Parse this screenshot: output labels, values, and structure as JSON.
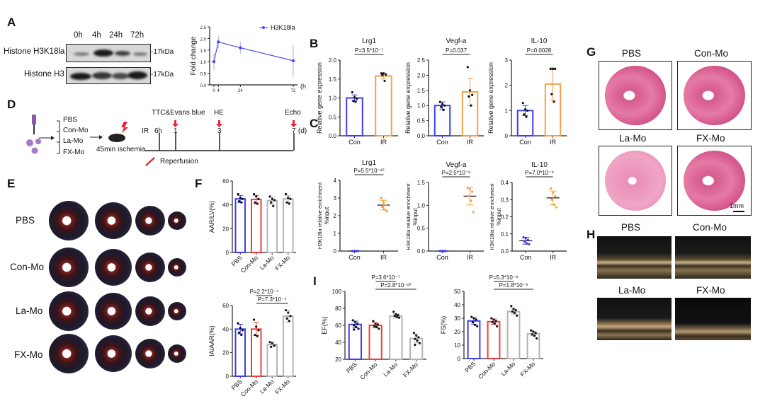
{
  "panel_labels": {
    "A": "A",
    "B": "B",
    "C": "C",
    "D": "D",
    "E": "E",
    "F": "F",
    "G": "G",
    "H": "H",
    "I": "I"
  },
  "panel_a": {
    "lanes": [
      "0h",
      "4h",
      "24h",
      "72h"
    ],
    "rows": [
      "Histone H3K18la",
      "Histone H3"
    ],
    "marker": "-17kDa"
  },
  "panel_d": {
    "groups": [
      "PBS",
      "Con-Mo",
      "La-Mo",
      "FX-Mo"
    ],
    "ischemia": "45min ischemia",
    "ir": "IR",
    "timepoints": [
      "6h",
      "1",
      "3",
      "7"
    ],
    "unit": "(d)",
    "assays": [
      "TTC&Evans blue",
      "HE",
      "Echo"
    ],
    "reperfusion": "Reperfusion"
  },
  "panel_e": {
    "rows": [
      "PBS",
      "Con-Mo",
      "La-Mo",
      "FX-Mo"
    ]
  },
  "panel_g": {
    "titles": [
      "PBS",
      "Con-Mo",
      "La-Mo",
      "FX-Mo"
    ],
    "scale_bar": "1mm"
  },
  "panel_h": {
    "titles": [
      "PBS",
      "Con-Mo",
      "La-Mo",
      "FX-Mo"
    ]
  },
  "colors": {
    "pbs": "#3d3df2",
    "con": "#f5a047",
    "conmo": "#f23c3c",
    "gray": "#b4b4b4",
    "line": "#4a4af5"
  },
  "chart_data": [
    {
      "id": "A",
      "type": "line",
      "ylabel": "Fold  change",
      "xunit": "(h",
      "legend": "H3K18la",
      "legend_position": "top-right",
      "x": [
        0,
        4,
        24,
        72
      ],
      "xticks": [
        "0",
        "4",
        "24",
        "72"
      ],
      "y": [
        1.0,
        1.85,
        1.6,
        1.04
      ],
      "err": [
        0.38,
        0.28,
        0.26,
        0.68
      ],
      "ylim": [
        0,
        2.5
      ],
      "yticks": [
        "0.0",
        "0.5",
        "1.0",
        "1.5",
        "2.0",
        "2.5"
      ]
    },
    {
      "id": "B1",
      "type": "bar",
      "title": "Lrg1",
      "ylabel": "Relative gene expression",
      "categories": [
        "Con",
        "IR"
      ],
      "color_keys": [
        "pbs",
        "con"
      ],
      "values": [
        1.0,
        1.58
      ],
      "err": [
        0.08,
        0.08
      ],
      "points": [
        [
          1.15,
          1.02,
          0.98,
          0.92,
          0.9
        ],
        [
          1.65,
          1.65,
          1.62,
          1.6,
          1.45
        ]
      ],
      "ylim": [
        0,
        2
      ],
      "yticks": [
        "0.0",
        "0.5",
        "1.0",
        "1.5",
        "2.0"
      ],
      "pvalues": [
        {
          "text": "P=3.5*10⁻⁷",
          "pair": [
            0,
            1
          ]
        }
      ]
    },
    {
      "id": "B2",
      "type": "bar",
      "title": "Vegf-a",
      "ylabel": "Relative gene expression",
      "categories": [
        "Con",
        "IR"
      ],
      "color_keys": [
        "pbs",
        "con"
      ],
      "values": [
        1.0,
        1.45
      ],
      "err": [
        0.12,
        0.45
      ],
      "points": [
        [
          1.12,
          1.05,
          1.0,
          0.95,
          0.85
        ],
        [
          2.27,
          1.5,
          1.35,
          1.3,
          1.0
        ]
      ],
      "ylim": [
        0,
        2.5
      ],
      "yticks": [
        "0.0",
        "0.5",
        "1.0",
        "1.5",
        "2.0",
        "2.5"
      ],
      "pvalues": [
        {
          "text": "P=0.037",
          "pair": [
            0,
            1
          ]
        }
      ]
    },
    {
      "id": "B3",
      "type": "bar",
      "title": "IL-10",
      "ylabel": "Relative gene expression",
      "categories": [
        "Con",
        "IR"
      ],
      "color_keys": [
        "pbs",
        "con"
      ],
      "values": [
        1.0,
        2.05
      ],
      "err": [
        0.2,
        0.65
      ],
      "points": [
        [
          1.3,
          1.05,
          1.0,
          0.85,
          0.75
        ],
        [
          2.65,
          2.65,
          2.65,
          1.65,
          1.35
        ]
      ],
      "ylim": [
        0,
        3
      ],
      "yticks": [
        "0",
        "1",
        "2",
        "3"
      ],
      "pvalues": [
        {
          "text": "P=0.0028",
          "pair": [
            0,
            1
          ]
        }
      ]
    },
    {
      "id": "C1",
      "type": "scatter",
      "title": "Lrg1",
      "ylabel": "H3K18la relative enrichment",
      "ylabel2": "%input",
      "categories": [
        "Con",
        "IR"
      ],
      "color_keys": [
        "pbs",
        "con"
      ],
      "values": [
        0.0,
        2.6
      ],
      "err": [
        0.0,
        0.27
      ],
      "points": [
        [
          0,
          0,
          0,
          0,
          0,
          0
        ],
        [
          3.0,
          2.75,
          2.6,
          2.5,
          2.35,
          2.25
        ]
      ],
      "ylim": [
        0,
        4
      ],
      "yticks": [
        "0",
        "1",
        "2",
        "3",
        "4"
      ],
      "pvalues": [
        {
          "text": "P=5.5*10⁻¹⁰",
          "pair": [
            0,
            1
          ]
        }
      ]
    },
    {
      "id": "C2",
      "type": "scatter",
      "title": "Vegf-a",
      "ylabel": "H3K18la relative enrichment",
      "ylabel2": "%input",
      "categories": [
        "Con",
        "IR"
      ],
      "color_keys": [
        "pbs",
        "con"
      ],
      "values": [
        0.0,
        1.2
      ],
      "err": [
        0.0,
        0.19
      ],
      "points": [
        [
          0,
          0,
          0,
          0,
          0,
          0
        ],
        [
          1.38,
          1.35,
          1.3,
          1.2,
          1.1,
          0.85
        ]
      ],
      "ylim": [
        0,
        1.5
      ],
      "yticks": [
        "0.0",
        "0.5",
        "1.0",
        "1.5"
      ],
      "pvalues": [
        {
          "text": "P=2.5*10⁻⁸",
          "pair": [
            0,
            1
          ]
        }
      ]
    },
    {
      "id": "C3",
      "type": "scatter",
      "title": "IL-10",
      "ylabel": "H3K18la relative enrichment",
      "ylabel2": "%input",
      "categories": [
        "Con",
        "IR"
      ],
      "color_keys": [
        "pbs",
        "con"
      ],
      "values": [
        0.06,
        0.31
      ],
      "err": [
        0.02,
        0.04
      ],
      "points": [
        [
          0.08,
          0.075,
          0.065,
          0.055,
          0.045,
          0.04
        ],
        [
          0.365,
          0.34,
          0.32,
          0.3,
          0.27,
          0.255
        ]
      ],
      "ylim": [
        0,
        0.4
      ],
      "yticks": [
        "0.0",
        "0.1",
        "0.2",
        "0.3",
        "0.4"
      ],
      "pvalues": [
        {
          "text": "P=7.0*10⁻⁸",
          "pair": [
            0,
            1
          ]
        }
      ]
    },
    {
      "id": "F1",
      "type": "bar",
      "ylabel": "AAR/LV(%)",
      "categories": [
        "PBS",
        "Con-Mo",
        "La-Mo",
        "FX-Mo"
      ],
      "color_keys": [
        "pbs",
        "conmo",
        "gray",
        "gray"
      ],
      "values": [
        45,
        44.5,
        43.5,
        45
      ],
      "err": [
        3,
        3.5,
        3,
        3
      ],
      "points": [
        [
          49,
          46,
          45,
          43,
          42
        ],
        [
          49,
          47,
          45,
          42,
          41
        ],
        [
          47,
          45,
          44,
          42,
          39
        ],
        [
          49,
          46,
          45,
          42,
          41
        ]
      ],
      "ylim": [
        0,
        60
      ],
      "yticks": [
        "0",
        "20",
        "40",
        "60"
      ],
      "pvalues": []
    },
    {
      "id": "F2",
      "type": "bar",
      "ylabel": "IA/AAR(%)",
      "categories": [
        "PBS",
        "Con-Mo",
        "La-Mo",
        "FX-Mo"
      ],
      "color_keys": [
        "pbs",
        "conmo",
        "gray",
        "gray"
      ],
      "values": [
        40,
        40,
        27,
        51
      ],
      "err": [
        4,
        5.5,
        2,
        5
      ],
      "points": [
        [
          45,
          41,
          39,
          37,
          35
        ],
        [
          48,
          42,
          39,
          35,
          34
        ],
        [
          29,
          28,
          26,
          25
        ],
        [
          56,
          54,
          51,
          49,
          47
        ]
      ],
      "ylim": [
        0,
        60
      ],
      "yticks": [
        "0",
        "20",
        "40",
        "60"
      ],
      "pvalues": [
        {
          "text": "P=2.2*10⁻⁴",
          "pair": [
            1,
            2
          ]
        },
        {
          "text": "P=7.3*10⁻⁴",
          "pair": [
            1,
            3
          ]
        }
      ]
    },
    {
      "id": "I1",
      "type": "bar",
      "ylabel": "EF(%)",
      "categories": [
        "PBS",
        "Con-Mo",
        "La-Mo",
        "FX-Mo"
      ],
      "color_keys": [
        "pbs",
        "conmo",
        "gray",
        "gray"
      ],
      "values": [
        61,
        60,
        71,
        44.5
      ],
      "err": [
        4,
        3,
        2.5,
        5
      ],
      "points": [
        [
          66,
          64,
          62,
          60,
          58,
          56,
          55
        ],
        [
          65,
          62,
          61,
          59,
          58,
          56
        ],
        [
          76,
          73,
          72,
          71,
          70,
          69
        ],
        [
          51,
          48,
          46,
          44,
          42,
          39,
          37
        ]
      ],
      "ylim": [
        20,
        100
      ],
      "yticks": [
        "20",
        "40",
        "60",
        "80",
        "100"
      ],
      "pvalues": [
        {
          "text": "P=3.6*10⁻⁷",
          "pair": [
            1,
            2
          ]
        },
        {
          "text": "P=2.8*10⁻¹⁰",
          "pair": [
            1,
            3
          ]
        }
      ]
    },
    {
      "id": "I2",
      "type": "bar",
      "ylabel": "FS(%)",
      "categories": [
        "PBS",
        "Con-Mo",
        "La-Mo",
        "FX-Mo"
      ],
      "color_keys": [
        "pbs",
        "conmo",
        "gray",
        "gray"
      ],
      "values": [
        28,
        27.5,
        35,
        18.5
      ],
      "err": [
        2.5,
        2,
        2,
        1.5
      ],
      "points": [
        [
          31,
          30,
          29,
          27,
          25,
          24
        ],
        [
          30,
          29,
          28,
          27,
          26,
          24
        ],
        [
          39,
          37,
          36,
          35,
          34,
          32
        ],
        [
          21,
          20,
          19,
          18,
          17,
          15
        ]
      ],
      "ylim": [
        0,
        50
      ],
      "yticks": [
        "0",
        "10",
        "20",
        "30",
        "40",
        "50"
      ],
      "pvalues": [
        {
          "text": "P=5.3*10⁻⁸",
          "pair": [
            1,
            2
          ]
        },
        {
          "text": "P=1.8*10⁻⁹",
          "pair": [
            1,
            3
          ]
        }
      ]
    }
  ]
}
